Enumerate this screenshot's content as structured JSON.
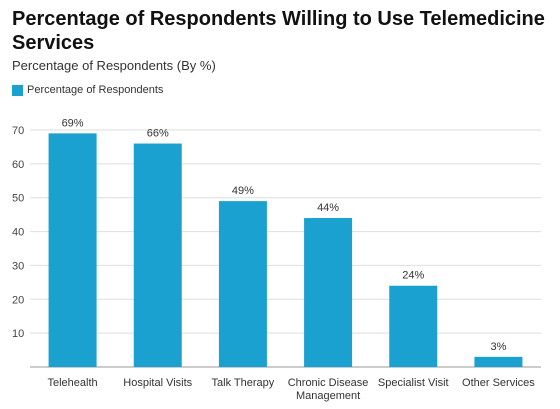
{
  "chart_data": {
    "type": "bar",
    "title": "Percentage of Respondents Willing to Use Telemedicine Services",
    "subtitle": "Percentage of Respondents (By %)",
    "categories": [
      "Telehealth",
      "Hospital Visits",
      "Talk Therapy",
      "Chronic Disease Management",
      "Specialist Visit",
      "Other Services"
    ],
    "category_lines": [
      [
        "Telehealth"
      ],
      [
        "Hospital Visits"
      ],
      [
        "Talk Therapy"
      ],
      [
        "Chronic Disease",
        "Management"
      ],
      [
        "Specialist Visit"
      ],
      [
        "Other Services"
      ]
    ],
    "series": [
      {
        "name": "Percentage of Respondents",
        "values": [
          69,
          66,
          49,
          44,
          24,
          3
        ],
        "labels": [
          "69%",
          "66%",
          "49%",
          "44%",
          "24%",
          "3%"
        ],
        "color": "#1ba1cf"
      }
    ],
    "y_ticks": [
      10,
      20,
      30,
      40,
      50,
      60,
      70
    ],
    "ylim": [
      0,
      70
    ],
    "grid": true,
    "legend_position": "top-left"
  }
}
